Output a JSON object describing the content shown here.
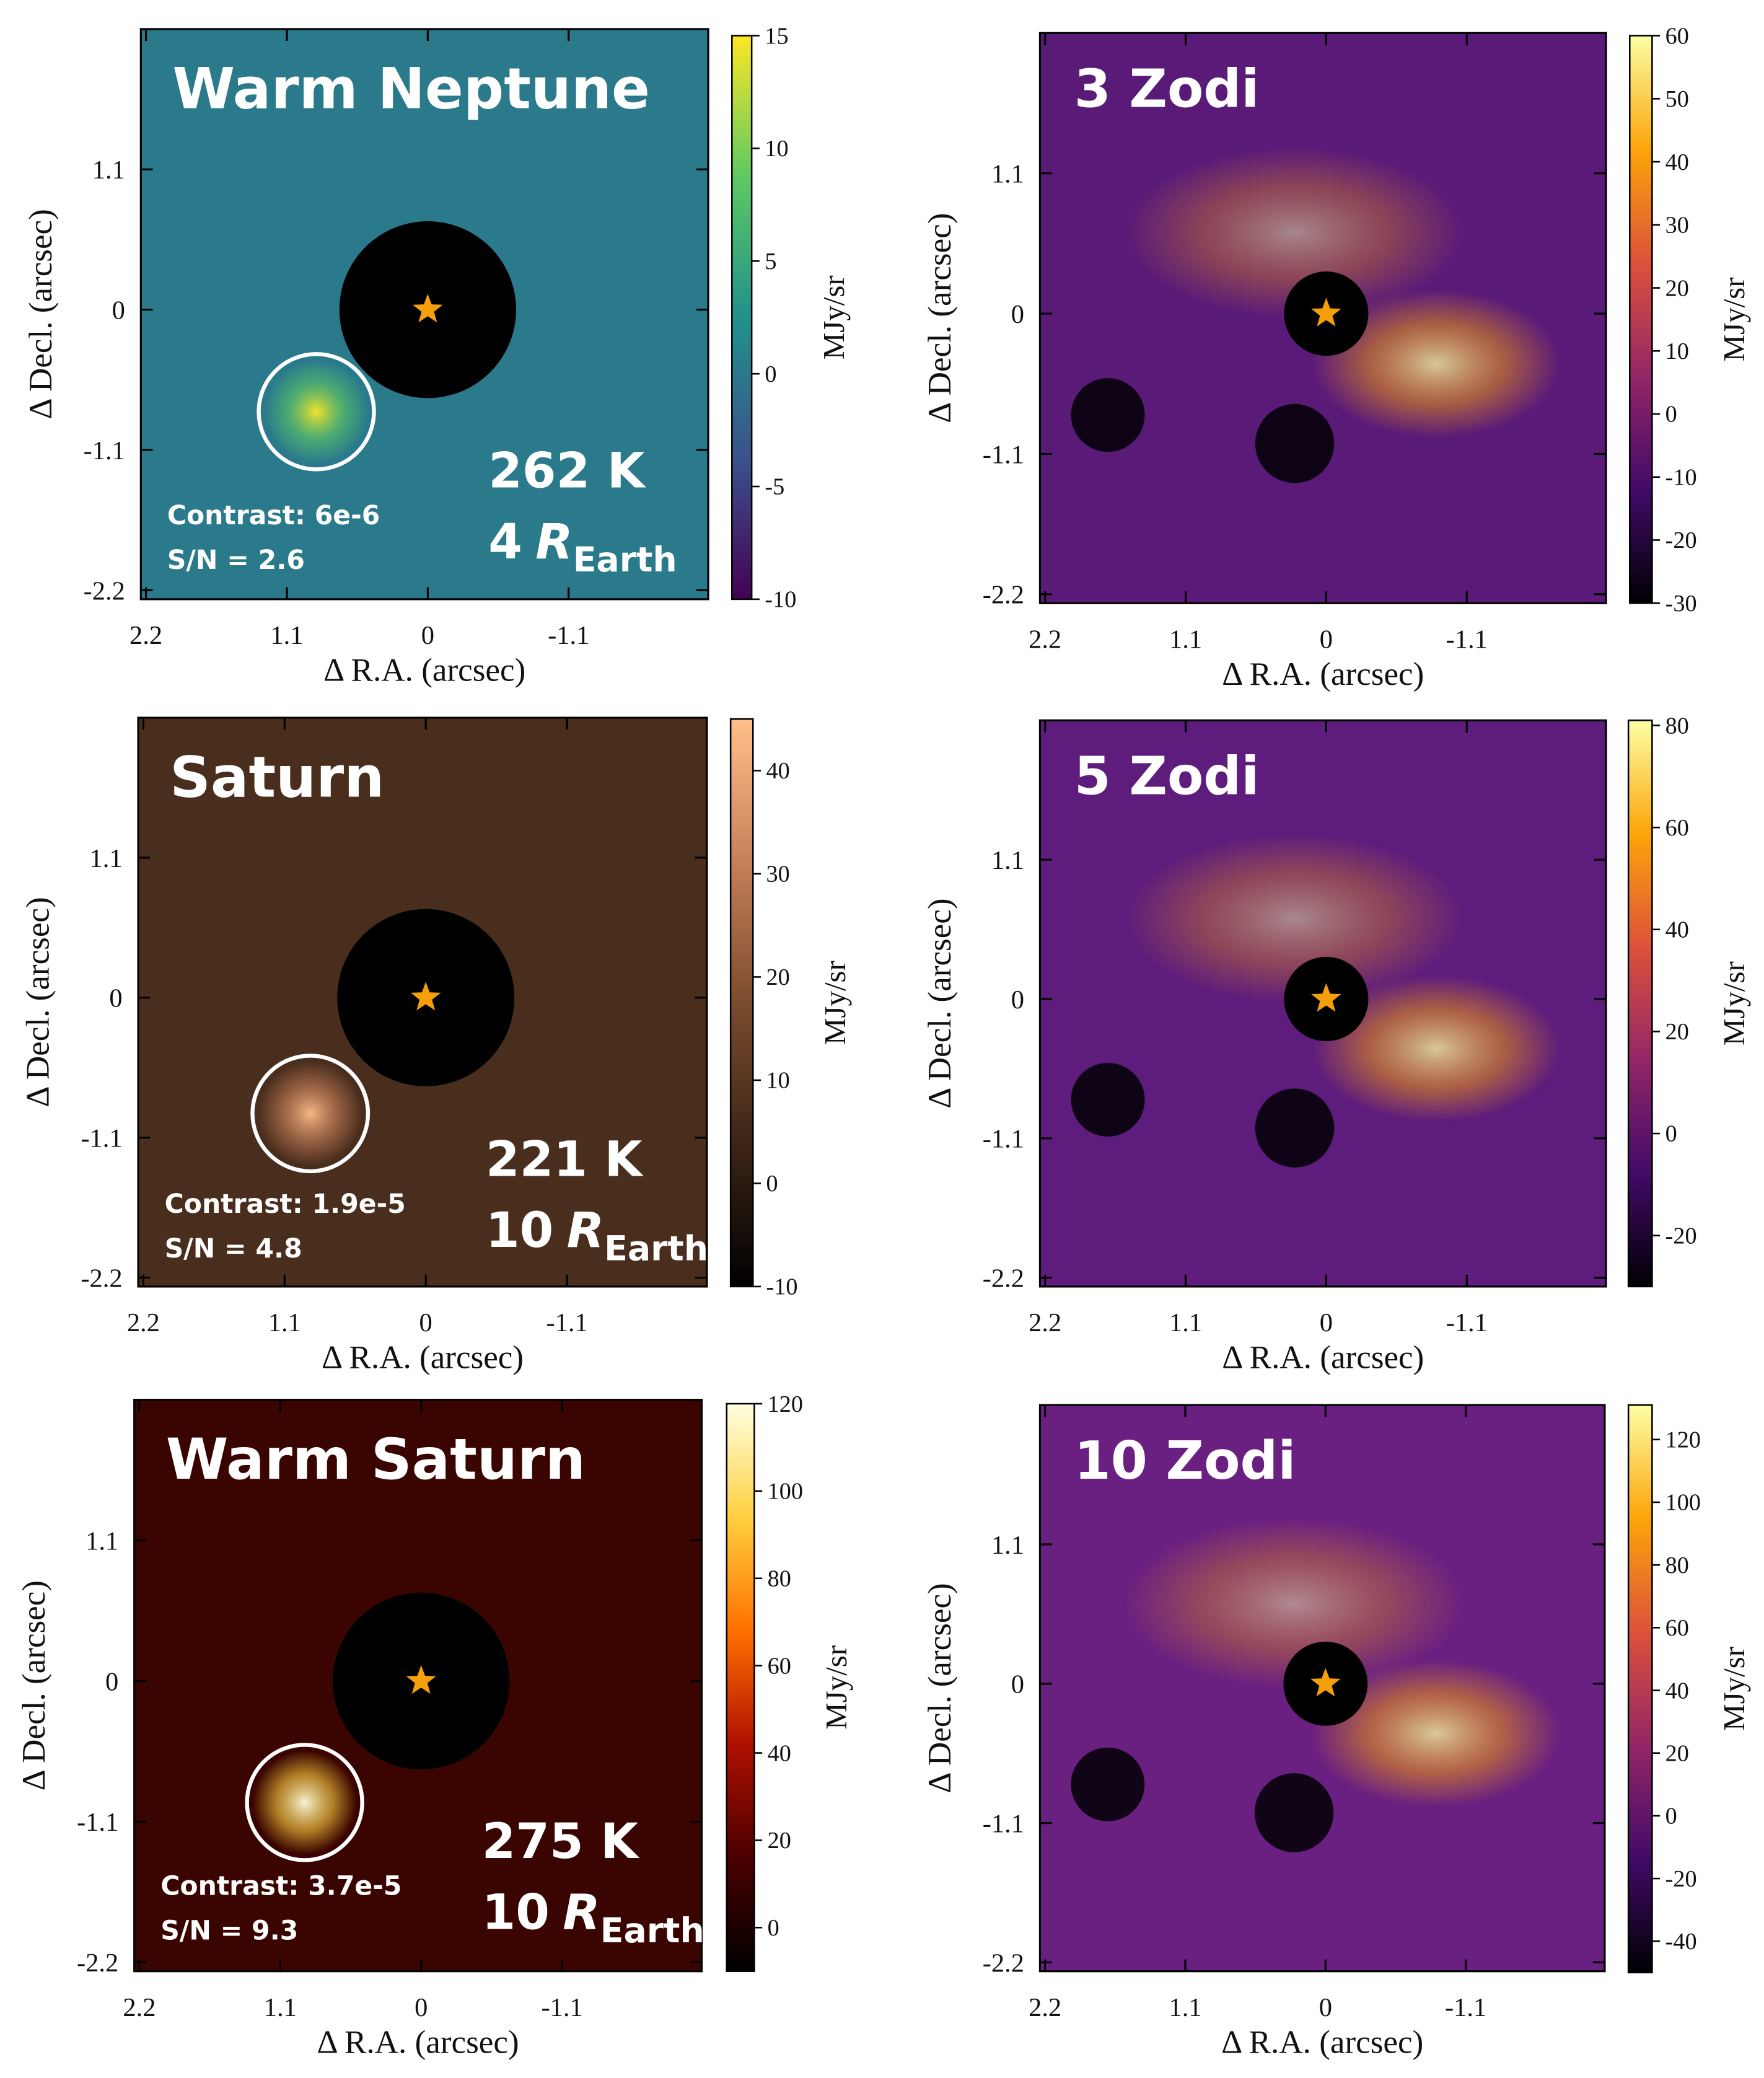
{
  "chart_data": [
    {
      "type": "heatmap",
      "title": "Warm Neptune",
      "temperature": "262 K",
      "radius": {
        "number": "4",
        "symbol": "R",
        "subscript": "Earth"
      },
      "contrast": "Contrast: 6e-6",
      "snr": "S/N = 2.6",
      "xlabel": "Δ R.A. (arcsec)",
      "ylabel": "Δ Decl. (arcsec)",
      "colorbar_label": "MJy/sr",
      "xlim": [
        2.24,
        -2.19
      ],
      "ylim": [
        -2.27,
        2.2
      ],
      "xticks": [
        2.2,
        1.1,
        0,
        -1.1
      ],
      "yticks": [
        1.1,
        0,
        -1.1,
        -2.2
      ],
      "clim": [
        -10,
        15
      ],
      "cticks": [
        -10,
        -5,
        0,
        5,
        10,
        15
      ],
      "colormap": [
        "#440154",
        "#3b528b",
        "#21918c",
        "#5ec962",
        "#fde725"
      ],
      "image_color": "#2a7a8c",
      "mask_radius": 0.69,
      "star": [
        0,
        0
      ],
      "star_color": "#f5a00a",
      "planet_circle": {
        "x": 0.87,
        "y": -0.8,
        "r": 0.45
      }
    },
    {
      "type": "heatmap",
      "title": "3 Zodi",
      "xlabel": "Δ R.A. (arcsec)",
      "ylabel": "Δ Decl. (arcsec)",
      "colorbar_label": "MJy/sr",
      "xlim": [
        2.24,
        -2.19
      ],
      "ylim": [
        -2.27,
        2.2
      ],
      "xticks": [
        2.2,
        1.1,
        0,
        -1.1
      ],
      "yticks": [
        1.1,
        0,
        -1.1,
        -2.2
      ],
      "clim": [
        -30,
        60
      ],
      "cticks": [
        -30,
        -20,
        -10,
        0,
        10,
        20,
        30,
        40,
        50,
        60
      ],
      "colormap": [
        "#000004",
        "#420a68",
        "#932667",
        "#dd513a",
        "#fca50a",
        "#fcffa4"
      ],
      "image_color": "#5a1a78",
      "mask_radius": 0.33,
      "star": [
        0,
        0
      ],
      "star_color": "#f5a00a"
    },
    {
      "type": "heatmap",
      "title": "Saturn",
      "temperature": "221 K",
      "radius": {
        "number": "10",
        "symbol": "R",
        "subscript": "Earth"
      },
      "contrast": "Contrast: 1.9e-5",
      "snr": "S/N = 4.8",
      "xlabel": "Δ R.A. (arcsec)",
      "ylabel": "Δ Decl. (arcsec)",
      "colorbar_label": "MJy/sr",
      "xlim": [
        2.24,
        -2.19
      ],
      "ylim": [
        -2.27,
        2.2
      ],
      "xticks": [
        2.2,
        1.1,
        0,
        -1.1
      ],
      "yticks": [
        1.1,
        0,
        -1.1,
        -2.2
      ],
      "clim": [
        -10,
        45
      ],
      "cticks": [
        -10,
        0,
        10,
        20,
        30,
        40
      ],
      "colormap": [
        "#000000",
        "#3b2416",
        "#7a4c2e",
        "#c7805a",
        "#ffc08a"
      ],
      "image_color": "#4a2e1d",
      "mask_radius": 0.69,
      "star": [
        0,
        0
      ],
      "star_color": "#f5a00a",
      "planet_circle": {
        "x": 0.9,
        "y": -0.91,
        "r": 0.45
      }
    },
    {
      "type": "heatmap",
      "title": "5 Zodi",
      "xlabel": "Δ R.A. (arcsec)",
      "ylabel": "Δ Decl. (arcsec)",
      "colorbar_label": "MJy/sr",
      "xlim": [
        2.24,
        -2.19
      ],
      "ylim": [
        -2.27,
        2.2
      ],
      "xticks": [
        2.2,
        1.1,
        0,
        -1.1
      ],
      "yticks": [
        1.1,
        0,
        -1.1,
        -2.2
      ],
      "clim": [
        -30,
        81
      ],
      "cticks": [
        -20,
        0,
        20,
        40,
        60,
        80
      ],
      "colormap": [
        "#000004",
        "#420a68",
        "#932667",
        "#dd513a",
        "#fca50a",
        "#fcffa4"
      ],
      "image_color": "#5e1c7c",
      "mask_radius": 0.33,
      "star": [
        0,
        0
      ],
      "star_color": "#f5a00a"
    },
    {
      "type": "heatmap",
      "title": "Warm Saturn",
      "temperature": "275 K",
      "radius": {
        "number": "10",
        "symbol": "R",
        "subscript": "Earth"
      },
      "contrast": "Contrast: 3.7e-5",
      "snr": "S/N = 9.3",
      "xlabel": "Δ R.A. (arcsec)",
      "ylabel": "Δ Decl. (arcsec)",
      "colorbar_label": "MJy/sr",
      "xlim": [
        2.24,
        -2.19
      ],
      "ylim": [
        -2.27,
        2.2
      ],
      "xticks": [
        2.2,
        1.1,
        0,
        -1.1
      ],
      "yticks": [
        1.1,
        0,
        -1.1,
        -2.2
      ],
      "clim": [
        -10,
        120
      ],
      "cticks": [
        0,
        20,
        40,
        60,
        80,
        100,
        120
      ],
      "colormap": [
        "#000000",
        "#4a0000",
        "#b01000",
        "#ff7000",
        "#ffd040",
        "#ffffe0"
      ],
      "image_color": "#3a0500",
      "mask_radius": 0.69,
      "star": [
        0,
        0
      ],
      "star_color": "#f5a00a",
      "planet_circle": {
        "x": 0.91,
        "y": -0.95,
        "r": 0.45
      }
    },
    {
      "type": "heatmap",
      "title": "10 Zodi",
      "xlabel": "Δ R.A. (arcsec)",
      "ylabel": "Δ Decl. (arcsec)",
      "colorbar_label": "MJy/sr",
      "xlim": [
        2.24,
        -2.19
      ],
      "ylim": [
        -2.27,
        2.2
      ],
      "xticks": [
        2.2,
        1.1,
        0,
        -1.1
      ],
      "yticks": [
        1.1,
        0,
        -1.1,
        -2.2
      ],
      "clim": [
        -50,
        131
      ],
      "cticks": [
        -40,
        -20,
        0,
        20,
        40,
        60,
        80,
        100,
        120
      ],
      "colormap": [
        "#000004",
        "#420a68",
        "#932667",
        "#dd513a",
        "#fca50a",
        "#fcffa4"
      ],
      "image_color": "#6a2080",
      "mask_radius": 0.33,
      "star": [
        0,
        0
      ],
      "star_color": "#f5a00a"
    }
  ]
}
